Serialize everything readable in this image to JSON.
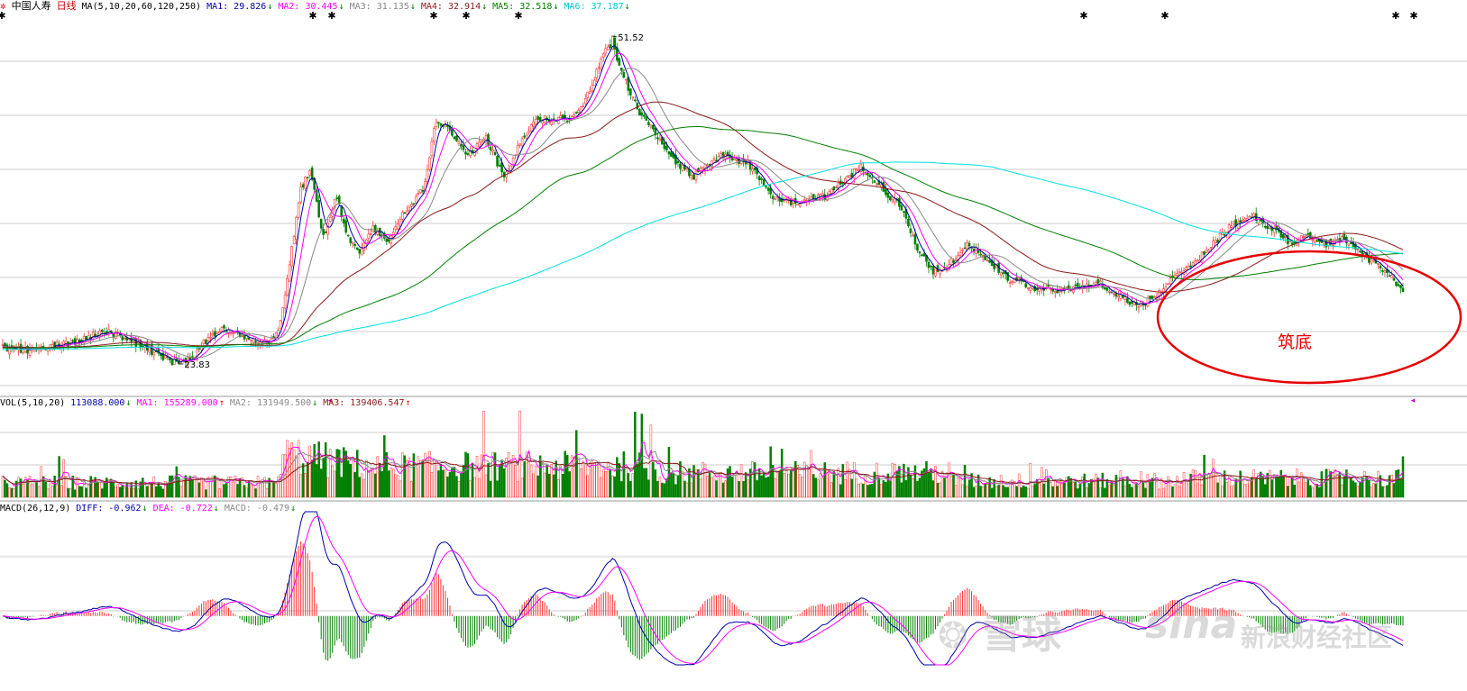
{
  "header": {
    "stock_name": "中国人寿",
    "period": "日线",
    "ma_title": "MA(5,10,20,60,120,250)",
    "indicators": [
      {
        "label": "MA1: 29.826",
        "arrow": "↓",
        "color": "#0000aa"
      },
      {
        "label": "MA2: 30.445",
        "arrow": "↓",
        "color": "#ff00ff"
      },
      {
        "label": "MA3: 31.135",
        "arrow": "↓",
        "color": "#888888"
      },
      {
        "label": "MA4: 32.914",
        "arrow": "↓",
        "color": "#8b1a1a"
      },
      {
        "label": "MA5: 32.518",
        "arrow": "↓",
        "color": "#008000"
      },
      {
        "label": "MA6: 37.187",
        "arrow": "↓",
        "color": "#00cccc"
      }
    ]
  },
  "vol_header": {
    "title": "VOL(5,10,20)",
    "indicators": [
      {
        "label": "113088.000",
        "arrow": "↓",
        "color": "#0000aa"
      },
      {
        "label": "MA1: 155289.000",
        "arrow": "↑",
        "color": "#ff00ff"
      },
      {
        "label": "MA2: 131949.500",
        "arrow": "↓",
        "color": "#888888"
      },
      {
        "label": "MA3: 139406.547",
        "arrow": "↑",
        "color": "#8b1a1a"
      }
    ]
  },
  "macd_header": {
    "title": "MACD(26,12,9)",
    "indicators": [
      {
        "label": "DIFF: -0.962",
        "arrow": "↓",
        "color": "#0000aa"
      },
      {
        "label": "DEA: -0.722",
        "arrow": "↓",
        "color": "#ff00ff"
      },
      {
        "label": "MACD: -0.479",
        "arrow": "↓",
        "color": "#888888"
      }
    ]
  },
  "annotations": {
    "high_label": "51.52",
    "low_label": "23.83",
    "circle_label": "筑底"
  },
  "watermarks": {
    "xueqiu": "雪球",
    "sina": "sina",
    "sina_community": "新浪财经社区"
  },
  "colors": {
    "up": "#ff3333",
    "down": "#008000",
    "grid": "#cccccc",
    "circle": "#e60000",
    "ma1": "#0000aa",
    "ma2": "#ff00ff",
    "ma3": "#888888",
    "ma4": "#8b1a1a",
    "ma5": "#008000",
    "ma6": "#00e0e0"
  },
  "chart_data": {
    "type": "candlestick",
    "price_ylim": [
      22,
      53.5
    ],
    "price_anchors": [
      [
        0,
        25.2
      ],
      [
        10,
        25.0
      ],
      [
        20,
        25.3
      ],
      [
        30,
        25.6
      ],
      [
        45,
        26.6
      ],
      [
        55,
        26.0
      ],
      [
        65,
        25.0
      ],
      [
        72,
        24.3
      ],
      [
        78,
        23.83
      ],
      [
        85,
        24.6
      ],
      [
        92,
        26.3
      ],
      [
        100,
        26.8
      ],
      [
        110,
        25.9
      ],
      [
        118,
        25.6
      ],
      [
        122,
        26.6
      ],
      [
        126,
        31.0
      ],
      [
        132,
        38.5
      ],
      [
        136,
        40.2
      ],
      [
        142,
        34.5
      ],
      [
        148,
        38.0
      ],
      [
        152,
        35.0
      ],
      [
        158,
        33.0
      ],
      [
        164,
        35.5
      ],
      [
        170,
        34.0
      ],
      [
        176,
        36.3
      ],
      [
        180,
        37.0
      ],
      [
        186,
        38.5
      ],
      [
        192,
        44.5
      ],
      [
        198,
        43.5
      ],
      [
        206,
        41.5
      ],
      [
        214,
        43.0
      ],
      [
        222,
        39.5
      ],
      [
        228,
        42.0
      ],
      [
        236,
        44.5
      ],
      [
        244,
        44.5
      ],
      [
        252,
        44.5
      ],
      [
        258,
        46.0
      ],
      [
        266,
        50.0
      ],
      [
        270,
        51.0
      ],
      [
        274,
        48.5
      ],
      [
        282,
        45.0
      ],
      [
        290,
        43.0
      ],
      [
        298,
        40.8
      ],
      [
        306,
        39.7
      ],
      [
        318,
        41.5
      ],
      [
        330,
        40.8
      ],
      [
        340,
        38.0
      ],
      [
        348,
        37.5
      ],
      [
        356,
        37.5
      ],
      [
        364,
        38.0
      ],
      [
        372,
        39.2
      ],
      [
        380,
        40.5
      ],
      [
        390,
        38.5
      ],
      [
        398,
        37.0
      ],
      [
        404,
        34.0
      ],
      [
        412,
        31.5
      ],
      [
        420,
        32.5
      ],
      [
        428,
        34.0
      ],
      [
        436,
        32.5
      ],
      [
        446,
        31.0
      ],
      [
        456,
        30.2
      ],
      [
        466,
        30.0
      ],
      [
        476,
        30.3
      ],
      [
        486,
        30.6
      ],
      [
        496,
        29.5
      ],
      [
        502,
        28.7
      ],
      [
        510,
        29.4
      ],
      [
        520,
        31.5
      ],
      [
        528,
        32.5
      ],
      [
        536,
        34.0
      ],
      [
        544,
        35.5
      ],
      [
        552,
        36.5
      ],
      [
        560,
        35.5
      ],
      [
        570,
        34.0
      ],
      [
        578,
        34.8
      ],
      [
        586,
        33.8
      ],
      [
        594,
        34.4
      ],
      [
        602,
        33.0
      ],
      [
        610,
        32.0
      ],
      [
        616,
        31.0
      ],
      [
        620,
        29.9
      ]
    ],
    "ma_final": {
      "MA1": 29.826,
      "MA2": 30.445,
      "MA3": 31.135,
      "MA4": 32.914,
      "MA5": 32.518,
      "MA6": 37.187
    },
    "high": 51.52,
    "low": 23.83,
    "vol_ylim": [
      0,
      250000
    ],
    "vol_last": 113088,
    "macd_ylim": [
      -1.5,
      3.2
    ],
    "macd_last": {
      "DIFF": -0.962,
      "DEA": -0.722,
      "MACD": -0.479
    }
  }
}
